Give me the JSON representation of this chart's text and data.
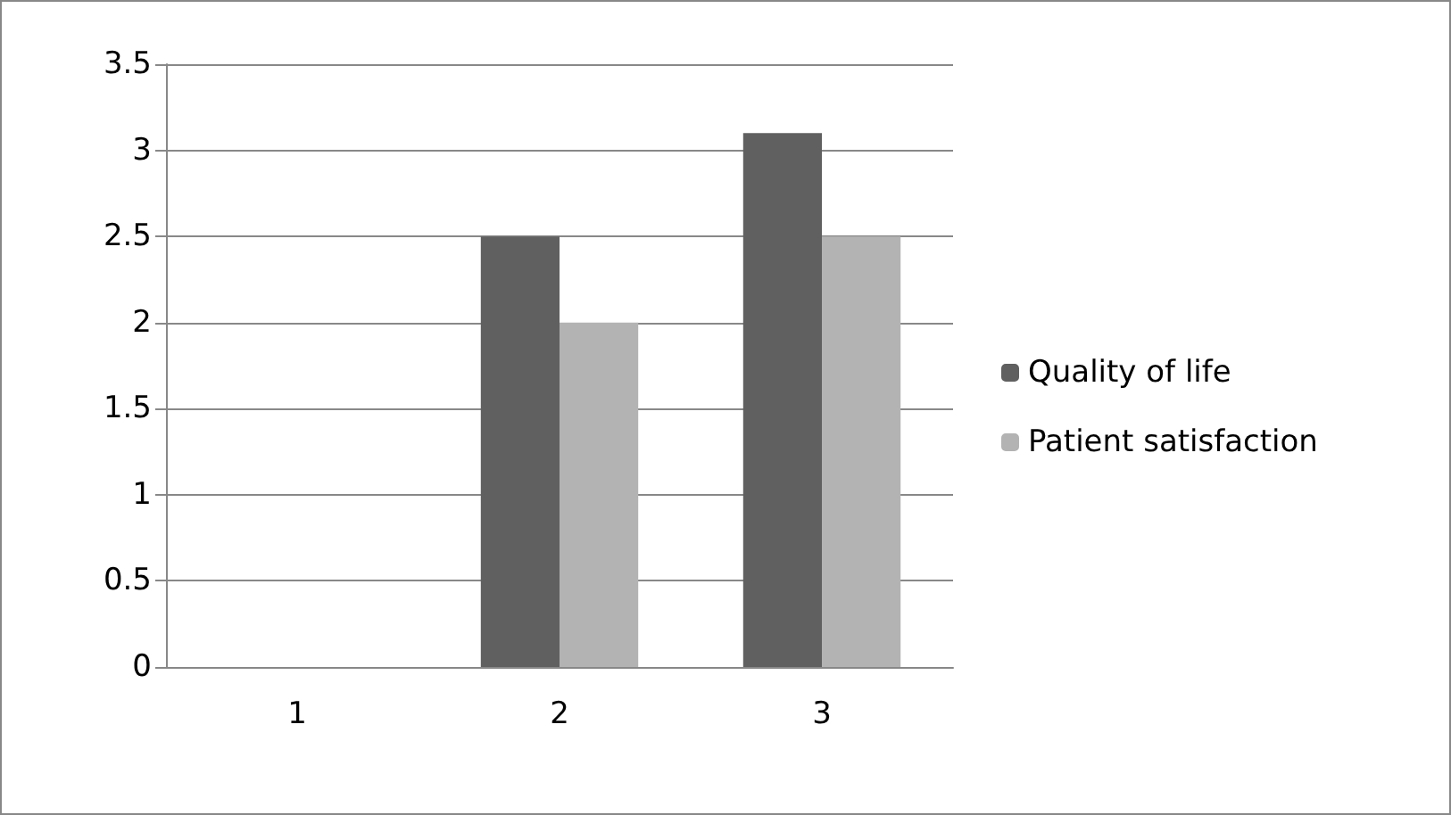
{
  "chart_data": {
    "type": "bar",
    "categories": [
      "1",
      "2",
      "3"
    ],
    "series": [
      {
        "name": "Quality of life",
        "color": "#606060",
        "values": [
          0,
          2.5,
          3.1
        ]
      },
      {
        "name": "Patient satisfaction",
        "color": "#b3b3b3",
        "values": [
          0,
          2.0,
          2.5
        ]
      }
    ],
    "ylim": [
      0,
      3.5
    ],
    "yticks": [
      0,
      0.5,
      1,
      1.5,
      2,
      2.5,
      3,
      3.5
    ],
    "grid": "y",
    "legend": "right"
  }
}
